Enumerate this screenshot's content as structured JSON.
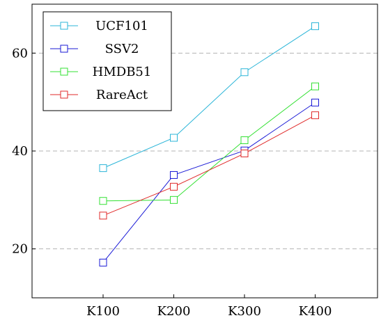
{
  "chart_data": {
    "type": "line",
    "title": "",
    "xlabel": "",
    "ylabel": "",
    "categories": [
      "K100",
      "K200",
      "K300",
      "K400"
    ],
    "ylim": [
      10,
      70
    ],
    "yticks": [
      20,
      40,
      60
    ],
    "grid": "horizontal dashed at y ticks",
    "marker": "open-square",
    "legend_position": "top-left",
    "series": [
      {
        "name": "UCF101",
        "color": "#2bb5d8",
        "values": [
          36.5,
          42.7,
          56.1,
          65.5
        ]
      },
      {
        "name": "SSV2",
        "color": "#1a1ad6",
        "values": [
          17.2,
          35.1,
          40.1,
          49.9
        ]
      },
      {
        "name": "HMDB51",
        "color": "#33e033",
        "values": [
          29.8,
          30.0,
          42.2,
          53.2
        ]
      },
      {
        "name": "RareAct",
        "color": "#e02a2a",
        "values": [
          26.8,
          32.7,
          39.5,
          47.3
        ]
      }
    ]
  }
}
